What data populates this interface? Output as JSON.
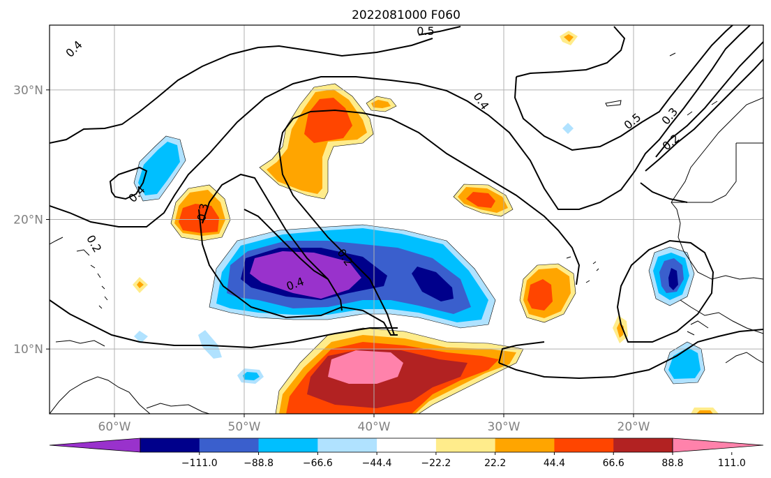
{
  "title": "2022081000 F060",
  "map": {
    "lon_range": [
      -65,
      -10
    ],
    "lat_range": [
      5,
      35
    ],
    "lon_ticks": [
      {
        "value": -60,
        "label": "60°W"
      },
      {
        "value": -50,
        "label": "50°W"
      },
      {
        "value": -40,
        "label": "40°W"
      },
      {
        "value": -30,
        "label": "30°W"
      },
      {
        "value": -20,
        "label": "20°W"
      }
    ],
    "lat_ticks": [
      {
        "value": 10,
        "label": "10°N"
      },
      {
        "value": 20,
        "label": "20°N"
      },
      {
        "value": 30,
        "label": "30°N"
      }
    ],
    "grid": true,
    "contour_labels": [
      "0.5",
      "0.4",
      "0.4",
      "0.4",
      "0.3",
      "0.2",
      "0.2",
      "0.4",
      "0.5",
      "0.3",
      "0.2"
    ]
  },
  "colorbar": {
    "colors": [
      "#9932cc",
      "#00008b",
      "#3a5fcd",
      "#00bfff",
      "#b0e2ff",
      "#ffffff",
      "#ffec8b",
      "#ffa500",
      "#ff4500",
      "#b22222",
      "#ff82ab"
    ],
    "labels": [
      "−111.0",
      "−88.8",
      "−66.6",
      "−44.4",
      "−22.2",
      "22.2",
      "44.4",
      "66.6",
      "88.8",
      "111.0"
    ],
    "extend": "both"
  }
}
